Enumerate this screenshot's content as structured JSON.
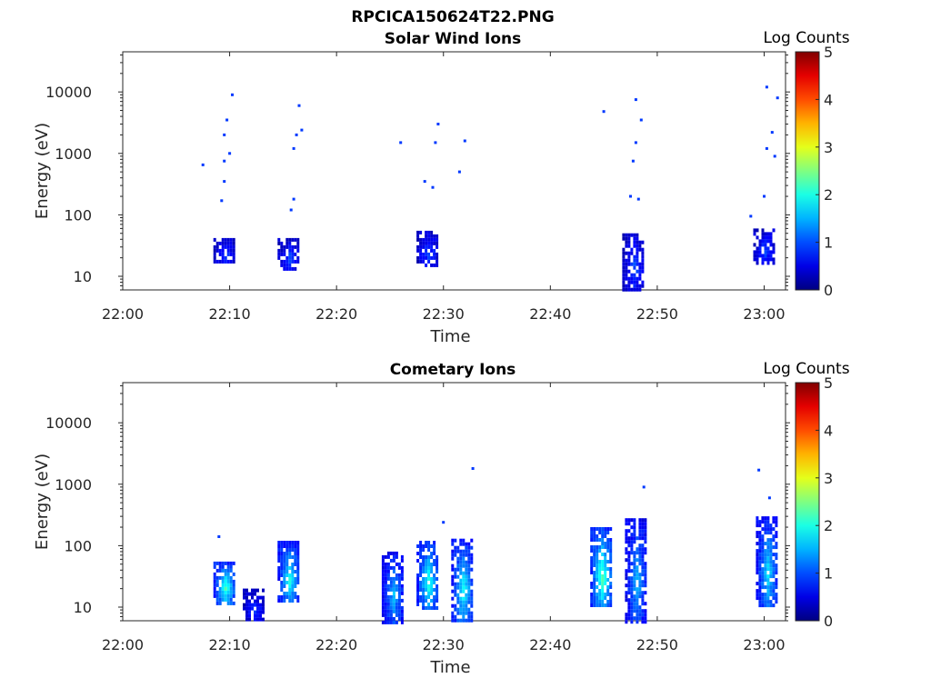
{
  "figure_title": "RPCICA150624T22.PNG",
  "chart_data": [
    {
      "type": "heatmap",
      "title": "Solar Wind Ions",
      "xlabel": "Time",
      "ylabel": "Energy (eV)",
      "x_ticks": [
        "22:00",
        "22:10",
        "22:20",
        "22:30",
        "22:40",
        "22:50",
        "23:00"
      ],
      "xlim": [
        "22:00",
        "23:02"
      ],
      "y_scale": "log",
      "y_ticks": [
        "10",
        "100",
        "1000",
        "10000"
      ],
      "ylim": [
        6,
        45000
      ],
      "colorbar": {
        "label": "Log Counts",
        "ticks": [
          "0",
          "1",
          "2",
          "3",
          "4",
          "5"
        ],
        "range": [
          0,
          5
        ],
        "colormap": "jet"
      },
      "blobs": [
        {
          "t": "22:09:30",
          "e_lo": 18,
          "e_hi": 42,
          "v": 1.0
        },
        {
          "t": "22:15:30",
          "e_lo": 13,
          "e_hi": 42,
          "v": 1.0
        },
        {
          "t": "22:28:30",
          "e_lo": 15,
          "e_hi": 55,
          "v": 1.0
        },
        {
          "t": "22:47:45",
          "e_lo": 6,
          "e_hi": 50,
          "v": 1.0
        },
        {
          "t": "23:00:00",
          "e_lo": 17,
          "e_hi": 60,
          "v": 1.0
        }
      ],
      "scatter": [
        {
          "t": "22:07:30",
          "e": 650,
          "v": 0.9
        },
        {
          "t": "22:09:15",
          "e": 170,
          "v": 0.9
        },
        {
          "t": "22:09:30",
          "e": 350,
          "v": 0.9
        },
        {
          "t": "22:09:30",
          "e": 750,
          "v": 0.9
        },
        {
          "t": "22:09:30",
          "e": 2000,
          "v": 0.9
        },
        {
          "t": "22:09:45",
          "e": 3500,
          "v": 0.9
        },
        {
          "t": "22:10:00",
          "e": 1000,
          "v": 0.9
        },
        {
          "t": "22:10:15",
          "e": 9000,
          "v": 0.9
        },
        {
          "t": "22:15:45",
          "e": 120,
          "v": 0.9
        },
        {
          "t": "22:16:00",
          "e": 180,
          "v": 0.9
        },
        {
          "t": "22:16:00",
          "e": 1200,
          "v": 0.9
        },
        {
          "t": "22:16:15",
          "e": 2000,
          "v": 0.9
        },
        {
          "t": "22:16:30",
          "e": 6000,
          "v": 0.9
        },
        {
          "t": "22:16:45",
          "e": 2400,
          "v": 0.9
        },
        {
          "t": "22:26:00",
          "e": 1500,
          "v": 0.9
        },
        {
          "t": "22:28:15",
          "e": 350,
          "v": 0.9
        },
        {
          "t": "22:29:00",
          "e": 280,
          "v": 0.9
        },
        {
          "t": "22:29:15",
          "e": 1500,
          "v": 0.9
        },
        {
          "t": "22:29:30",
          "e": 3000,
          "v": 0.9
        },
        {
          "t": "22:31:30",
          "e": 500,
          "v": 0.9
        },
        {
          "t": "22:32:00",
          "e": 1600,
          "v": 0.9
        },
        {
          "t": "22:45:00",
          "e": 4800,
          "v": 0.9
        },
        {
          "t": "22:47:30",
          "e": 200,
          "v": 0.9
        },
        {
          "t": "22:47:45",
          "e": 750,
          "v": 0.9
        },
        {
          "t": "22:48:00",
          "e": 1500,
          "v": 0.9
        },
        {
          "t": "22:48:00",
          "e": 7500,
          "v": 0.9
        },
        {
          "t": "22:48:30",
          "e": 3500,
          "v": 0.9
        },
        {
          "t": "22:48:15",
          "e": 180,
          "v": 0.9
        },
        {
          "t": "22:58:45",
          "e": 95,
          "v": 0.9
        },
        {
          "t": "23:00:00",
          "e": 200,
          "v": 0.9
        },
        {
          "t": "23:00:15",
          "e": 1200,
          "v": 0.9
        },
        {
          "t": "23:00:15",
          "e": 12000,
          "v": 0.9
        },
        {
          "t": "23:00:45",
          "e": 2200,
          "v": 0.9
        },
        {
          "t": "23:01:00",
          "e": 900,
          "v": 0.9
        },
        {
          "t": "23:01:15",
          "e": 8000,
          "v": 0.9
        }
      ]
    },
    {
      "type": "heatmap",
      "title": "Cometary Ions",
      "xlabel": "Time",
      "ylabel": "Energy (eV)",
      "x_ticks": [
        "22:00",
        "22:10",
        "22:20",
        "22:30",
        "22:40",
        "22:50",
        "23:00"
      ],
      "xlim": [
        "22:00",
        "23:02"
      ],
      "y_scale": "log",
      "y_ticks": [
        "10",
        "100",
        "1000",
        "10000"
      ],
      "ylim": [
        6,
        45000
      ],
      "colorbar": {
        "label": "Log Counts",
        "ticks": [
          "0",
          "1",
          "2",
          "3",
          "4",
          "5"
        ],
        "range": [
          0,
          5
        ],
        "colormap": "jet"
      },
      "blobs": [
        {
          "t": "22:09:30",
          "e_lo": 12,
          "e_hi": 55,
          "v": 2.2
        },
        {
          "t": "22:12:15",
          "e_lo": 6,
          "e_hi": 20,
          "v": 0.9
        },
        {
          "t": "22:15:30",
          "e_lo": 12,
          "e_hi": 120,
          "v": 2.0
        },
        {
          "t": "22:25:15",
          "e_lo": 6,
          "e_hi": 80,
          "v": 1.6
        },
        {
          "t": "22:28:30",
          "e_lo": 10,
          "e_hi": 120,
          "v": 2.1
        },
        {
          "t": "22:31:45",
          "e_lo": 6,
          "e_hi": 130,
          "v": 2.0
        },
        {
          "t": "22:44:45",
          "e_lo": 10,
          "e_hi": 200,
          "v": 2.3
        },
        {
          "t": "22:48:00",
          "e_lo": 6,
          "e_hi": 280,
          "v": 1.6
        },
        {
          "t": "23:00:15",
          "e_lo": 10,
          "e_hi": 300,
          "v": 1.8
        }
      ],
      "scatter": [
        {
          "t": "22:09:00",
          "e": 140,
          "v": 0.9
        },
        {
          "t": "22:30:00",
          "e": 240,
          "v": 0.9
        },
        {
          "t": "22:32:45",
          "e": 1800,
          "v": 0.9
        },
        {
          "t": "22:48:45",
          "e": 900,
          "v": 0.9
        },
        {
          "t": "22:59:30",
          "e": 1700,
          "v": 0.9
        },
        {
          "t": "23:00:30",
          "e": 600,
          "v": 0.9
        }
      ]
    }
  ]
}
